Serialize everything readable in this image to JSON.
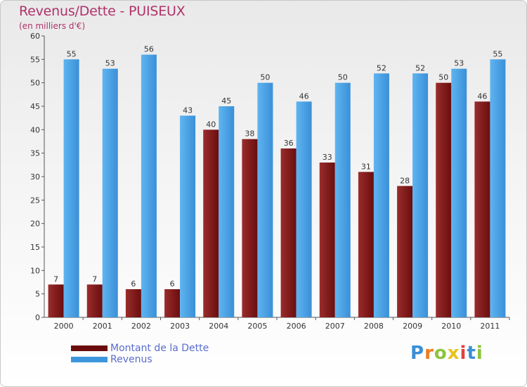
{
  "header": {
    "title": "Revenus/Dette - PUISEUX",
    "subtitle": "(en milliers d'€)"
  },
  "chart_data": {
    "type": "bar",
    "categories": [
      "2000",
      "2001",
      "2002",
      "2003",
      "2004",
      "2005",
      "2006",
      "2007",
      "2008",
      "2009",
      "2010",
      "2011"
    ],
    "series": [
      {
        "name": "Montant de la Dette",
        "values": [
          7,
          7,
          6,
          6,
          40,
          38,
          36,
          33,
          31,
          28,
          50,
          46
        ],
        "color": "#7a1c1c"
      },
      {
        "name": "Revenus",
        "values": [
          55,
          53,
          56,
          43,
          45,
          50,
          46,
          50,
          52,
          52,
          53,
          55
        ],
        "color": "#4aa3e6"
      }
    ],
    "title": "Revenus/Dette - PUISEUX",
    "ylabel": "",
    "xlabel": "",
    "ylim": [
      0,
      60
    ],
    "yticks": [
      0,
      5,
      10,
      15,
      20,
      25,
      30,
      35,
      40,
      45,
      50,
      55,
      60
    ],
    "grid": false,
    "legend_position": "bottom-left"
  },
  "legend": {
    "items": [
      {
        "label": "Montant de la Dette",
        "color": "#6b0d0d"
      },
      {
        "label": "Revenus",
        "color": "#3d96dc"
      }
    ]
  },
  "logo": {
    "letters": [
      {
        "ch": "P",
        "color": "#3a8fd6"
      },
      {
        "ch": "r",
        "color": "#f07c1c"
      },
      {
        "ch": "o",
        "color": "#8cc43c"
      },
      {
        "ch": "x",
        "color": "#e8c21c"
      },
      {
        "ch": "i",
        "color": "#e04040"
      },
      {
        "ch": "t",
        "color": "#3a8fd6"
      },
      {
        "ch": "i",
        "color": "#8cc43c"
      }
    ]
  }
}
